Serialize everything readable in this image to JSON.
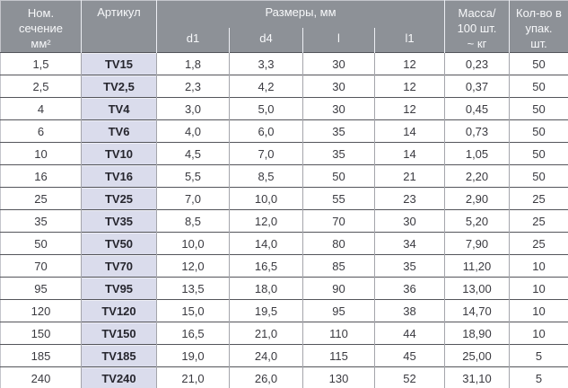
{
  "colors": {
    "header_bg": "#8d9197",
    "header_text": "#f7f8fa",
    "header_divider": "#eceef3",
    "article_bg": "#dadcec",
    "article_text": "#26262e",
    "cell_bg": "#ffffff",
    "cell_text": "#3a3a40",
    "row_line": "#54555b",
    "col_line": "#a4a5ab",
    "outer_border": "#c4c5cb"
  },
  "chart_data": {
    "type": "table",
    "header": {
      "section_lines": [
        "Ном.",
        "сечение",
        "мм²"
      ],
      "article": "Артикул",
      "dimensions_group": "Размеры, мм",
      "dimension_columns": [
        "d1",
        "d4",
        "l",
        "l1"
      ],
      "mass_lines": [
        "Масса/",
        "100 шт.",
        "~ кг"
      ],
      "qty_lines": [
        "Кол-во в",
        "упак.",
        "шт."
      ]
    },
    "rows": [
      {
        "section": "1,5",
        "article": "TV15",
        "d1": "1,8",
        "d4": "3,3",
        "l": "30",
        "l1": "12",
        "mass": "0,23",
        "qty": "50"
      },
      {
        "section": "2,5",
        "article": "TV2,5",
        "d1": "2,3",
        "d4": "4,2",
        "l": "30",
        "l1": "12",
        "mass": "0,37",
        "qty": "50"
      },
      {
        "section": "4",
        "article": "TV4",
        "d1": "3,0",
        "d4": "5,0",
        "l": "30",
        "l1": "12",
        "mass": "0,45",
        "qty": "50"
      },
      {
        "section": "6",
        "article": "TV6",
        "d1": "4,0",
        "d4": "6,0",
        "l": "35",
        "l1": "14",
        "mass": "0,73",
        "qty": "50"
      },
      {
        "section": "10",
        "article": "TV10",
        "d1": "4,5",
        "d4": "7,0",
        "l": "35",
        "l1": "14",
        "mass": "1,05",
        "qty": "50"
      },
      {
        "section": "16",
        "article": "TV16",
        "d1": "5,5",
        "d4": "8,5",
        "l": "50",
        "l1": "21",
        "mass": "2,20",
        "qty": "50"
      },
      {
        "section": "25",
        "article": "TV25",
        "d1": "7,0",
        "d4": "10,0",
        "l": "55",
        "l1": "23",
        "mass": "2,90",
        "qty": "25"
      },
      {
        "section": "35",
        "article": "TV35",
        "d1": "8,5",
        "d4": "12,0",
        "l": "70",
        "l1": "30",
        "mass": "5,20",
        "qty": "25"
      },
      {
        "section": "50",
        "article": "TV50",
        "d1": "10,0",
        "d4": "14,0",
        "l": "80",
        "l1": "34",
        "mass": "7,90",
        "qty": "25"
      },
      {
        "section": "70",
        "article": "TV70",
        "d1": "12,0",
        "d4": "16,5",
        "l": "85",
        "l1": "35",
        "mass": "11,20",
        "qty": "10"
      },
      {
        "section": "95",
        "article": "TV95",
        "d1": "13,5",
        "d4": "18,0",
        "l": "90",
        "l1": "36",
        "mass": "13,00",
        "qty": "10"
      },
      {
        "section": "120",
        "article": "TV120",
        "d1": "15,0",
        "d4": "19,5",
        "l": "95",
        "l1": "38",
        "mass": "14,70",
        "qty": "10"
      },
      {
        "section": "150",
        "article": "TV150",
        "d1": "16,5",
        "d4": "21,0",
        "l": "110",
        "l1": "44",
        "mass": "18,90",
        "qty": "10"
      },
      {
        "section": "185",
        "article": "TV185",
        "d1": "19,0",
        "d4": "24,0",
        "l": "115",
        "l1": "45",
        "mass": "25,00",
        "qty": "5"
      },
      {
        "section": "240",
        "article": "TV240",
        "d1": "21,0",
        "d4": "26,0",
        "l": "130",
        "l1": "52",
        "mass": "31,10",
        "qty": "5"
      }
    ]
  }
}
